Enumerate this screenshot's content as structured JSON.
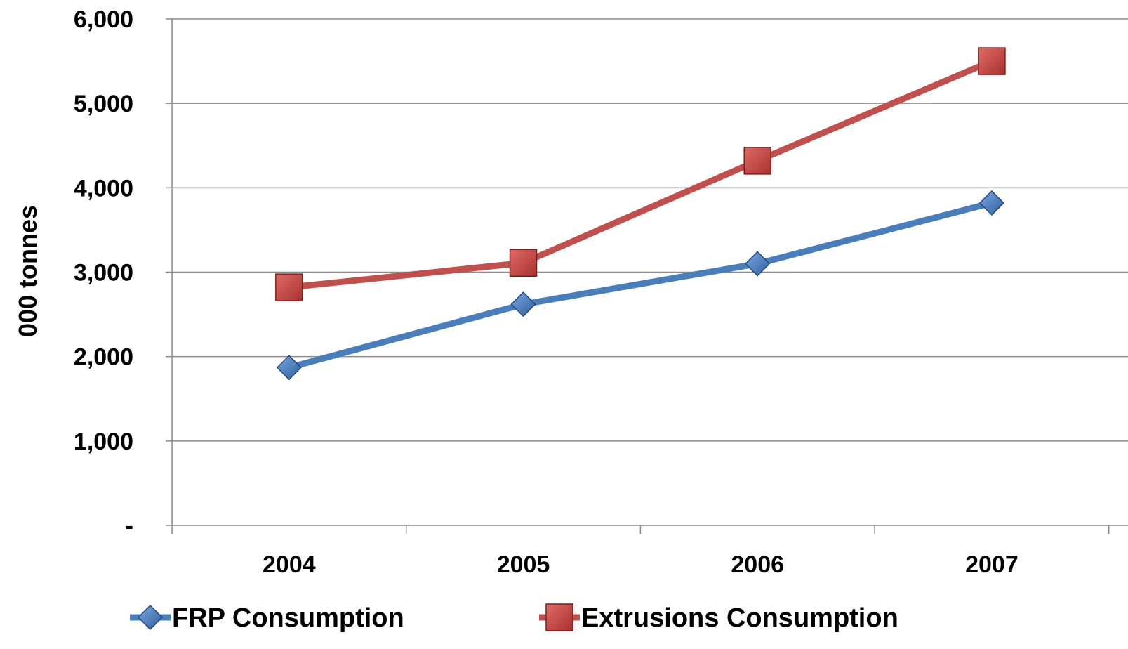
{
  "chart_data": {
    "type": "line",
    "title": "",
    "xlabel": "",
    "ylabel": "000 tonnes",
    "categories": [
      "2004",
      "2005",
      "2006",
      "2007"
    ],
    "ylim": [
      0,
      6000
    ],
    "yticks": [
      0,
      1000,
      2000,
      3000,
      4000,
      5000,
      6000
    ],
    "ytick_labels": [
      "-",
      "1,000",
      "2,000",
      "3,000",
      "4,000",
      "5,000",
      "6,000"
    ],
    "grid": true,
    "legend_position": "bottom",
    "series": [
      {
        "name": "FRP Consumption",
        "values": [
          1870,
          2620,
          3100,
          3820
        ],
        "color": "#4a7ebb",
        "marker": "diamond"
      },
      {
        "name": "Extrusions Consumption",
        "values": [
          2820,
          3110,
          4320,
          5500
        ],
        "color": "#c0504d",
        "marker": "square"
      }
    ]
  }
}
